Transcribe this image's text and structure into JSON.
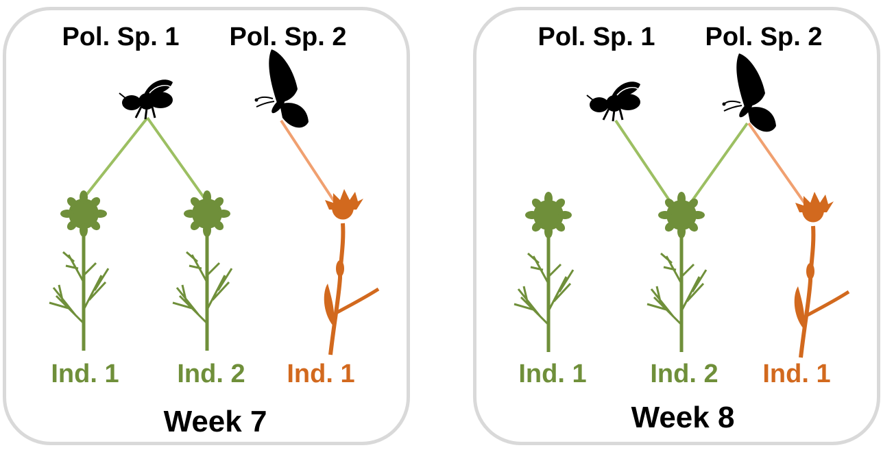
{
  "colors": {
    "green_plant": "#6f8f3a",
    "green_link": "#9cbf62",
    "orange_plant": "#d2691e",
    "orange_link": "#f0a070",
    "silhouette": "#000000",
    "panel_border": "#d9d9d9"
  },
  "icons": {
    "pollinator_1": "bee-icon",
    "pollinator_2": "butterfly-icon",
    "plant_green": "daisy-plant-icon",
    "plant_orange": "orange-flower-plant-icon"
  },
  "panels": [
    {
      "pollinators": [
        {
          "label": "Pol. Sp. 1"
        },
        {
          "label": "Pol. Sp. 2"
        }
      ],
      "plants": [
        {
          "label": "Ind. 1",
          "color": "green"
        },
        {
          "label": "Ind. 2",
          "color": "green"
        },
        {
          "label": "Ind. 1",
          "color": "orange"
        }
      ],
      "links": [
        {
          "pollinator": "Pol. Sp. 1",
          "plant": "Ind. 1 (green)"
        },
        {
          "pollinator": "Pol. Sp. 1",
          "plant": "Ind. 2 (green)"
        },
        {
          "pollinator": "Pol. Sp. 2",
          "plant": "Ind. 1 (orange)"
        }
      ],
      "week": "Week 7"
    },
    {
      "pollinators": [
        {
          "label": "Pol. Sp. 1"
        },
        {
          "label": "Pol. Sp. 2"
        }
      ],
      "plants": [
        {
          "label": "Ind. 1",
          "color": "green"
        },
        {
          "label": "Ind. 2",
          "color": "green"
        },
        {
          "label": "Ind. 1",
          "color": "orange"
        }
      ],
      "links": [
        {
          "pollinator": "Pol. Sp. 1",
          "plant": "Ind. 2 (green)"
        },
        {
          "pollinator": "Pol. Sp. 2",
          "plant": "Ind. 2 (green)"
        },
        {
          "pollinator": "Pol. Sp. 2",
          "plant": "Ind. 1 (orange)"
        }
      ],
      "week": "Week 8"
    }
  ]
}
